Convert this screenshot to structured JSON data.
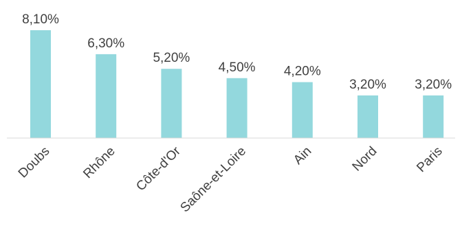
{
  "chart_data": {
    "type": "bar",
    "categories": [
      "Doubs",
      "Rhône",
      "Côte-d'Or",
      "Saône-et-Loire",
      "Ain",
      "Nord",
      "Paris"
    ],
    "values": [
      8.1,
      6.3,
      5.2,
      4.5,
      4.2,
      3.2,
      3.2
    ],
    "data_labels": [
      "8,10%",
      "6,30%",
      "5,20%",
      "4,50%",
      "4,20%",
      "3,20%",
      "3,20%"
    ],
    "ylim": [
      0,
      8.1
    ],
    "grid": false,
    "legend": "none",
    "bar_color": "#93d8dd"
  }
}
